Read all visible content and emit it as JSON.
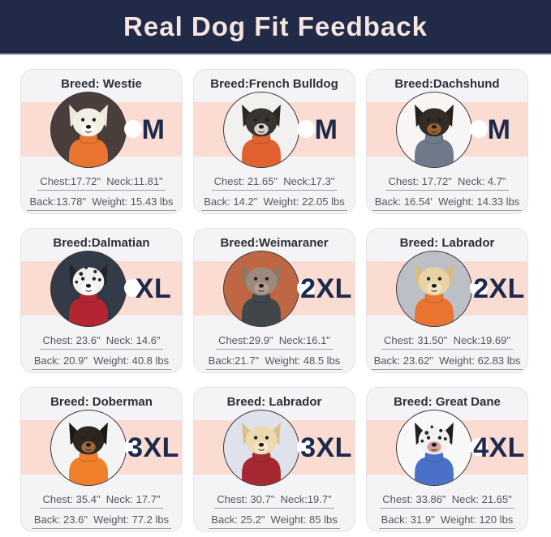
{
  "theme": {
    "header_bg": "#212b47",
    "header_text": "#f6e4e0",
    "band": "#fadcd3",
    "card_bg": "#f4f4f6",
    "size_color": "#1e2a4c"
  },
  "header": {
    "title": "Real Dog Fit Feedback"
  },
  "cards": [
    {
      "breed": "Breed: Westie",
      "size": "M",
      "chest_neck": "Chest:17.72\"  Neck:11.81\"",
      "back_weight": "Back:13.78\"  Weight: 15.43 lbs",
      "photo": {
        "label": "westie-in-orange-sweater",
        "bg": "#4a3e3c",
        "fur": "#f4efe5",
        "ear": "#efe8da",
        "muzzle": "#fbf8f1",
        "sweater": "#e9742f",
        "spots": false
      }
    },
    {
      "breed": "Breed:French Bulldog",
      "size": "M",
      "chest_neck": "Chest: 21.65\"  Neck:17.3\"",
      "back_weight": "Back: 14.2\"  Weight: 22.05 lbs",
      "photo": {
        "label": "french-bulldog-in-orange-sweater",
        "bg": "#f2f1f0",
        "fur": "#38342f",
        "ear": "#2b2824",
        "muzzle": "#d9d3c8",
        "sweater": "#e06030",
        "spots": false
      }
    },
    {
      "breed": "Breed:Dachshund",
      "size": "M",
      "chest_neck": "Chest: 17.72\"  Neck: 4.7\"",
      "back_weight": "Back: 16.54'  Weight: 14.33 lbs",
      "photo": {
        "label": "dachshund-in-gray-sweater",
        "bg": "#f7f6f5",
        "fur": "#332c26",
        "ear": "#26201b",
        "muzzle": "#9c6434",
        "sweater": "#70798a",
        "spots": false
      }
    },
    {
      "breed": "Breed:Dalmatian",
      "size": "XL",
      "chest_neck": "Chest: 23.6\"  Neck: 14.6\"",
      "back_weight": "Back: 20.9\"  Weight: 40.8 lbs",
      "photo": {
        "label": "dalmatian-in-red-sweater",
        "bg": "#333a48",
        "fur": "#f1f1f1",
        "ear": "#26262a",
        "muzzle": "#ffffff",
        "sweater": "#b32531",
        "spots": true
      }
    },
    {
      "breed": "Breed:Weimaraner",
      "size": "2XL",
      "chest_neck": "Chest:29.9\"  Neck:16.1\"",
      "back_weight": "Back:21.7\"  Weight: 48.5 lbs",
      "photo": {
        "label": "weimaraner-in-charcoal-sweater",
        "bg": "#bf6742",
        "fur": "#9e8a7c",
        "ear": "#8c7667",
        "muzzle": "#b4a090",
        "sweater": "#41464b",
        "spots": false
      }
    },
    {
      "breed": "Breed: Labrador",
      "size": "2XL",
      "chest_neck": "Chest: 31.50\"  Neck:19.69\"",
      "back_weight": "Back: 23.62\"  Weight: 62.83 lbs",
      "photo": {
        "label": "yellow-labrador-in-orange-sweater",
        "bg": "#bcc0c6",
        "fur": "#e9d2a4",
        "ear": "#d9ba82",
        "muzzle": "#f2e3c2",
        "sweater": "#e9742f",
        "spots": false
      }
    },
    {
      "breed": "Breed: Doberman",
      "size": "3XL",
      "chest_neck": "Chest: 35.4\"  Neck: 17.7\"",
      "back_weight": "Back: 23.6\"  Weight: 77.2 lbs",
      "photo": {
        "label": "doberman-in-orange-sweater",
        "bg": "#f4f4f4",
        "fur": "#2c2620",
        "ear": "#1e1913",
        "muzzle": "#a4693b",
        "sweater": "#ef7f2b",
        "spots": false
      }
    },
    {
      "breed": "Breed: Labrador",
      "size": "3XL",
      "chest_neck": "Chest: 30.7\"  Neck:19.7\"",
      "back_weight": "Back: 25.2\"  Weight: 85 lbs",
      "photo": {
        "label": "yellow-labrador-in-red-sweater",
        "bg": "#dfe2ea",
        "fur": "#ecd9ae",
        "ear": "#dcc089",
        "muzzle": "#f5e8ca",
        "sweater": "#a62832",
        "spots": false
      }
    },
    {
      "breed": "Breed: Great Dane",
      "size": "4XL",
      "chest_neck": "Chest: 33.86\"  Neck: 21.65\"",
      "back_weight": "Back: 31.9\"  Weight: 120 lbs",
      "photo": {
        "label": "harlequin-great-dane-in-blue-sweater",
        "bg": "#f8f8f8",
        "fur": "#f2f2f2",
        "ear": "#1f1f23",
        "muzzle": "#d8a39c",
        "sweater": "#4a70c8",
        "spots": true
      }
    }
  ]
}
